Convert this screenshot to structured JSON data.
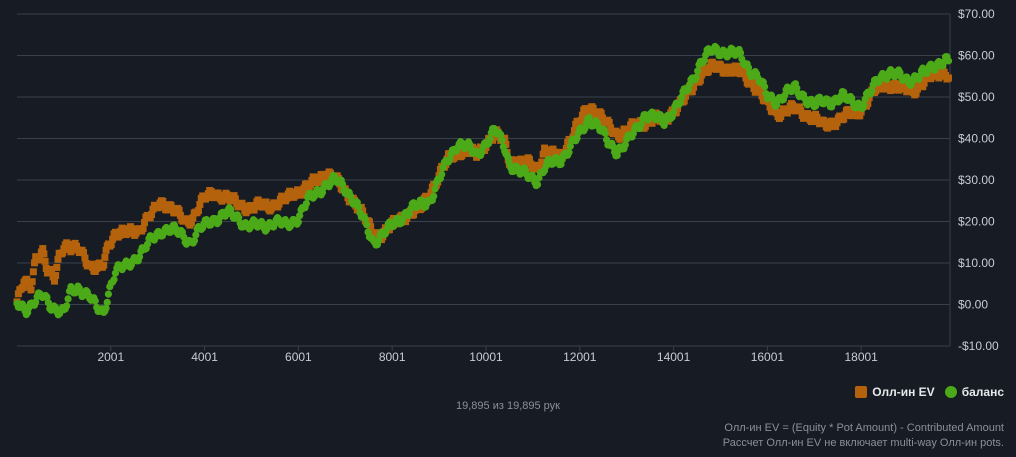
{
  "chart_data": {
    "type": "scatter",
    "x_ticks": [
      2001,
      4001,
      6001,
      8001,
      10001,
      12001,
      14001,
      16001,
      18001
    ],
    "x_tick_labels": [
      "2001",
      "4001",
      "6001",
      "8001",
      "10001",
      "12001",
      "14001",
      "16001",
      "18001"
    ],
    "y_ticks": [
      -10,
      0,
      10,
      20,
      30,
      40,
      50,
      60,
      70
    ],
    "y_tick_labels": [
      "-$10.00",
      "$0.00",
      "$10.00",
      "$20.00",
      "$30.00",
      "$40.00",
      "$50.00",
      "$60.00",
      "$70.00"
    ],
    "xlim": [
      1,
      19895
    ],
    "ylim": [
      -10,
      70
    ],
    "y_axis_position": "right",
    "grid": true,
    "legend_position": "bottom-right",
    "series": [
      {
        "name": "Олл-ин EV",
        "color": "#b5620d",
        "marker": "square",
        "points": [
          [
            1,
            0
          ],
          [
            150,
            6
          ],
          [
            300,
            5
          ],
          [
            400,
            11
          ],
          [
            550,
            12
          ],
          [
            650,
            8
          ],
          [
            800,
            7
          ],
          [
            900,
            12
          ],
          [
            1000,
            14
          ],
          [
            1150,
            13
          ],
          [
            1300,
            14
          ],
          [
            1450,
            12
          ],
          [
            1550,
            9
          ],
          [
            1700,
            8
          ],
          [
            1850,
            10
          ],
          [
            1950,
            15
          ],
          [
            2100,
            17
          ],
          [
            2300,
            17
          ],
          [
            2450,
            18
          ],
          [
            2600,
            18
          ],
          [
            2750,
            20
          ],
          [
            2900,
            22
          ],
          [
            3050,
            25
          ],
          [
            3200,
            24
          ],
          [
            3400,
            22
          ],
          [
            3600,
            20
          ],
          [
            3750,
            21
          ],
          [
            3900,
            24
          ],
          [
            4050,
            26
          ],
          [
            4200,
            27
          ],
          [
            4400,
            26
          ],
          [
            4600,
            25
          ],
          [
            4800,
            24
          ],
          [
            5000,
            23
          ],
          [
            5200,
            24
          ],
          [
            5450,
            24
          ],
          [
            5700,
            25
          ],
          [
            5900,
            27
          ],
          [
            6150,
            28
          ],
          [
            6400,
            30
          ],
          [
            6600,
            32
          ],
          [
            6800,
            30
          ],
          [
            7000,
            27
          ],
          [
            7200,
            25
          ],
          [
            7400,
            21
          ],
          [
            7600,
            17
          ],
          [
            7800,
            17
          ],
          [
            8000,
            19
          ],
          [
            8200,
            21
          ],
          [
            8400,
            22
          ],
          [
            8600,
            23
          ],
          [
            8800,
            27
          ],
          [
            9000,
            31
          ],
          [
            9200,
            35
          ],
          [
            9400,
            37
          ],
          [
            9600,
            37
          ],
          [
            9800,
            36
          ],
          [
            10000,
            39
          ],
          [
            10200,
            41
          ],
          [
            10400,
            39
          ],
          [
            10500,
            35
          ],
          [
            10700,
            34
          ],
          [
            10900,
            34
          ],
          [
            11100,
            33
          ],
          [
            11250,
            37
          ],
          [
            11400,
            36
          ],
          [
            11600,
            36
          ],
          [
            11800,
            40
          ],
          [
            12000,
            44
          ],
          [
            12200,
            48
          ],
          [
            12400,
            46
          ],
          [
            12600,
            43
          ],
          [
            12800,
            41
          ],
          [
            13000,
            42
          ],
          [
            13200,
            43
          ],
          [
            13400,
            44
          ],
          [
            13600,
            45
          ],
          [
            13800,
            44
          ],
          [
            14000,
            47
          ],
          [
            14200,
            49
          ],
          [
            14400,
            52
          ],
          [
            14600,
            56
          ],
          [
            14800,
            57
          ],
          [
            15000,
            57
          ],
          [
            15200,
            57
          ],
          [
            15400,
            56
          ],
          [
            15600,
            54
          ],
          [
            15800,
            52
          ],
          [
            16000,
            48
          ],
          [
            16200,
            46
          ],
          [
            16400,
            47
          ],
          [
            16600,
            47
          ],
          [
            16800,
            46
          ],
          [
            17000,
            45
          ],
          [
            17200,
            43
          ],
          [
            17400,
            44
          ],
          [
            17600,
            45
          ],
          [
            17800,
            46
          ],
          [
            18000,
            47
          ],
          [
            18200,
            50
          ],
          [
            18400,
            53
          ],
          [
            18600,
            53
          ],
          [
            18800,
            52
          ],
          [
            19000,
            52
          ],
          [
            19200,
            52
          ],
          [
            19400,
            54
          ],
          [
            19600,
            56
          ],
          [
            19800,
            56
          ],
          [
            19895,
            54
          ]
        ]
      },
      {
        "name": "баланс",
        "color": "#4caa18",
        "marker": "circle",
        "points": [
          [
            1,
            0
          ],
          [
            200,
            -1
          ],
          [
            400,
            1
          ],
          [
            550,
            2
          ],
          [
            700,
            0
          ],
          [
            850,
            -1
          ],
          [
            1000,
            -2
          ],
          [
            1150,
            3
          ],
          [
            1300,
            4
          ],
          [
            1450,
            3
          ],
          [
            1550,
            2
          ],
          [
            1700,
            -1
          ],
          [
            1850,
            -2
          ],
          [
            1950,
            3
          ],
          [
            2100,
            8
          ],
          [
            2300,
            9
          ],
          [
            2500,
            11
          ],
          [
            2700,
            13
          ],
          [
            2900,
            16
          ],
          [
            3100,
            18
          ],
          [
            3300,
            18
          ],
          [
            3500,
            17
          ],
          [
            3700,
            15
          ],
          [
            3900,
            18
          ],
          [
            4100,
            20
          ],
          [
            4300,
            21
          ],
          [
            4500,
            22
          ],
          [
            4700,
            21
          ],
          [
            4900,
            19
          ],
          [
            5100,
            19
          ],
          [
            5300,
            19
          ],
          [
            5500,
            20
          ],
          [
            5750,
            19
          ],
          [
            6000,
            21
          ],
          [
            6200,
            25
          ],
          [
            6400,
            27
          ],
          [
            6600,
            29
          ],
          [
            6800,
            30
          ],
          [
            7000,
            28
          ],
          [
            7200,
            25
          ],
          [
            7400,
            20
          ],
          [
            7600,
            15
          ],
          [
            7800,
            17
          ],
          [
            8000,
            19
          ],
          [
            8200,
            21
          ],
          [
            8400,
            23
          ],
          [
            8600,
            24
          ],
          [
            8800,
            25
          ],
          [
            9000,
            30
          ],
          [
            9200,
            35
          ],
          [
            9400,
            39
          ],
          [
            9600,
            38
          ],
          [
            9800,
            36
          ],
          [
            10000,
            39
          ],
          [
            10200,
            42
          ],
          [
            10400,
            38
          ],
          [
            10500,
            34
          ],
          [
            10700,
            32
          ],
          [
            10900,
            31
          ],
          [
            11100,
            30
          ],
          [
            11250,
            33
          ],
          [
            11400,
            34
          ],
          [
            11600,
            35
          ],
          [
            11800,
            38
          ],
          [
            12000,
            41
          ],
          [
            12200,
            45
          ],
          [
            12400,
            43
          ],
          [
            12600,
            39
          ],
          [
            12800,
            37
          ],
          [
            13000,
            39
          ],
          [
            13200,
            42
          ],
          [
            13400,
            46
          ],
          [
            13600,
            45
          ],
          [
            13800,
            44
          ],
          [
            14000,
            47
          ],
          [
            14200,
            50
          ],
          [
            14400,
            54
          ],
          [
            14600,
            59
          ],
          [
            14800,
            61
          ],
          [
            15000,
            61
          ],
          [
            15200,
            61
          ],
          [
            15400,
            60
          ],
          [
            15600,
            57
          ],
          [
            15800,
            55
          ],
          [
            16000,
            50
          ],
          [
            16200,
            49
          ],
          [
            16400,
            51
          ],
          [
            16600,
            52
          ],
          [
            16800,
            50
          ],
          [
            17000,
            48
          ],
          [
            17200,
            49
          ],
          [
            17400,
            49
          ],
          [
            17600,
            50
          ],
          [
            17800,
            49
          ],
          [
            18000,
            48
          ],
          [
            18200,
            51
          ],
          [
            18400,
            55
          ],
          [
            18600,
            56
          ],
          [
            18800,
            55
          ],
          [
            19000,
            54
          ],
          [
            19200,
            55
          ],
          [
            19400,
            56
          ],
          [
            19600,
            58
          ],
          [
            19800,
            59
          ],
          [
            19895,
            58
          ]
        ]
      }
    ]
  },
  "legend": {
    "items": [
      {
        "label": "Олл-ин EV",
        "color": "#b5620d",
        "marker": "square"
      },
      {
        "label": "баланс",
        "color": "#4caa18",
        "marker": "circle"
      }
    ]
  },
  "hand_count": "19,895 из 19,895 рук",
  "footnote": {
    "line1": "Олл-ин EV = (Equity * Pot Amount) - Contributed Amount",
    "line2": "Рассчет Олл-ин EV не включает multi-way Олл-ин pots."
  },
  "colors": {
    "background": "#161b24",
    "grid": "#3a404b",
    "text": "#c8ccd4",
    "muted_text": "#8a909a"
  }
}
